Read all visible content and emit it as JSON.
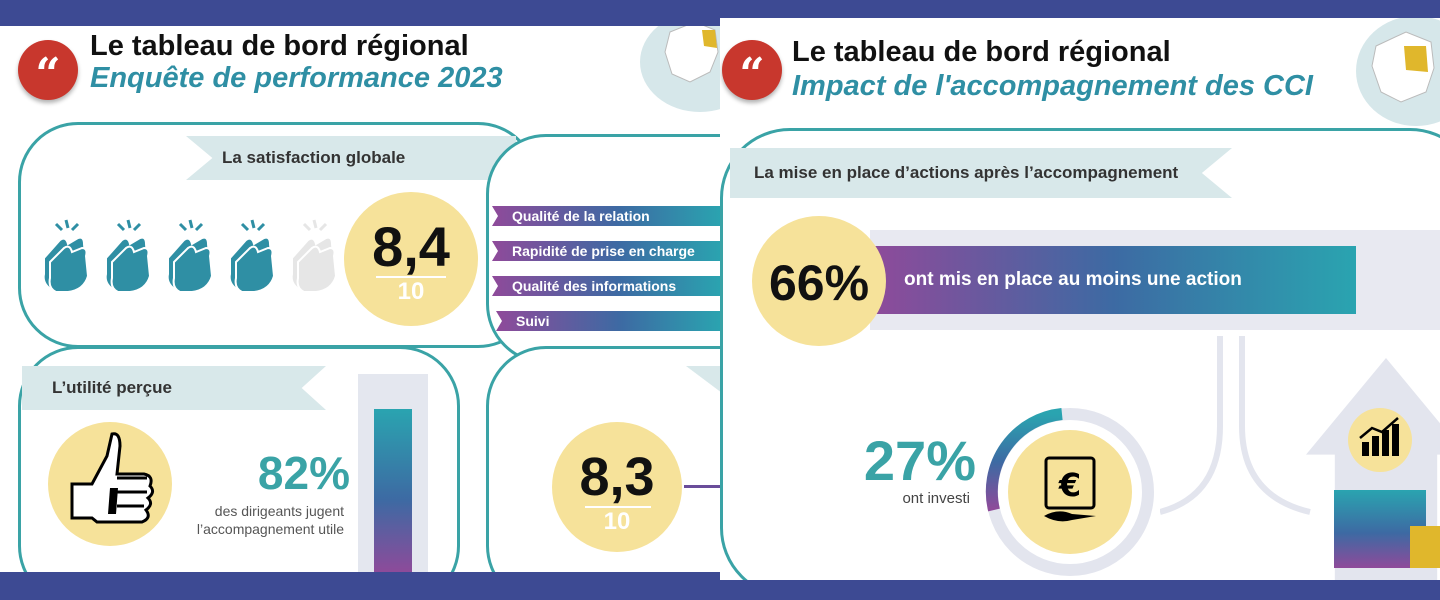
{
  "left": {
    "title": "Le tableau de bord régional",
    "subtitle": "Enquête de performance 2023",
    "satisfaction": {
      "heading": "La satisfaction globale",
      "score": "8,4",
      "denominator": "10",
      "hands_filled": 4,
      "hands_total": 5
    },
    "criteria": [
      "Qualité de la relation",
      "Rapidité de prise en charge",
      "Qualité des informations",
      "Suivi"
    ],
    "utility": {
      "heading": "L’utilité perçue",
      "percent": "82%",
      "caption_line1": "des dirigeants jugent",
      "caption_line2": "l’accompagnement utile"
    },
    "second_score": {
      "score": "8,3",
      "denominator": "10"
    }
  },
  "right": {
    "title": "Le tableau de bord régional",
    "subtitle": "Impact de l'accompagnement des CCI",
    "section": "La mise en place d’actions après l’accompagnement",
    "action": {
      "percent": "66%",
      "label": "ont mis en place au moins une action"
    },
    "invest": {
      "percent": "27%",
      "label": "ont investi"
    }
  },
  "colors": {
    "frame": "#3d4a93",
    "teal": "#3aa3a6",
    "title_blue": "#2f8fa4",
    "quote_red": "#c8372d",
    "circle_yellow": "#f6e29a",
    "ribbon": "#d8e8ea",
    "gradient": [
      "#8f4a9a",
      "#3d6aa3",
      "#2aa4b0"
    ]
  },
  "icons": [
    "quote-icon",
    "france-map-icon",
    "clapping-hands-icon",
    "thumbs-up-icon",
    "euro-document-icon",
    "growth-chart-icon",
    "up-arrow-icon"
  ]
}
